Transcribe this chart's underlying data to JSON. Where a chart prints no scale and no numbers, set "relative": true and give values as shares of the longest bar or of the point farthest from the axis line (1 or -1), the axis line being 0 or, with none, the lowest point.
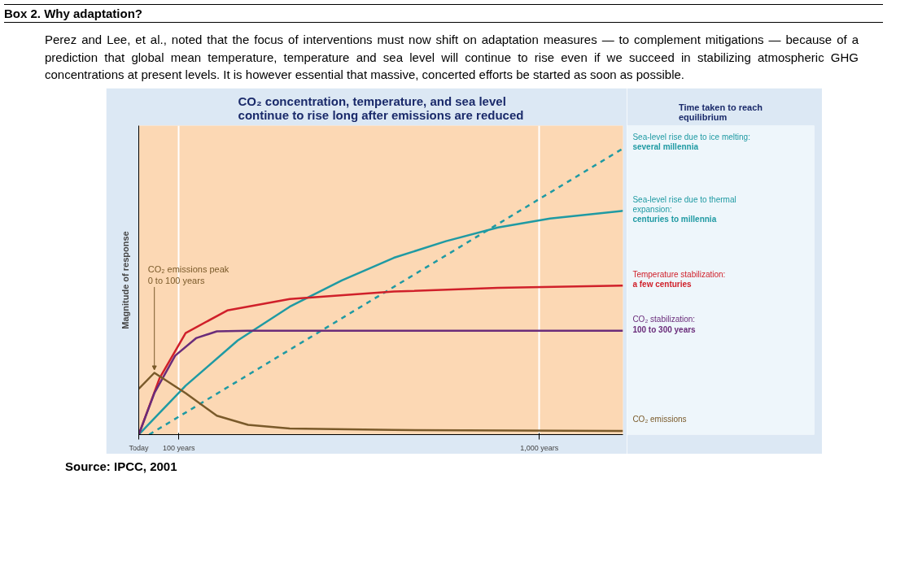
{
  "chart_data": {
    "type": "line",
    "title": "CO₂ concentration, temperature, and sea level\ncontinue to rise long after emissions are reduced",
    "ylabel": "Magnitude of response",
    "legend_title": "Time taken to reach\nequilibrium",
    "relative": true,
    "legend": "right",
    "grid": "x",
    "marker": "none",
    "xlim": [
      0,
      1209
    ],
    "xticks": [
      {
        "value": 0,
        "label": "Today"
      },
      {
        "value": 100,
        "label": "100 years"
      },
      {
        "value": 1000,
        "label": "1,000 years"
      }
    ],
    "series": [
      {
        "name": "Sea-level rise due to ice melting: several millennia",
        "color": "#1f9aa3",
        "line_style": "dashed",
        "x": [
          26,
          1209
        ],
        "values": [
          0,
          1.0
        ]
      },
      {
        "name": "Sea-level rise due to thermal expansion: centuries to millennia",
        "color": "#1f9aa3",
        "line_style": "solid",
        "x": [
          0,
          117,
          247,
          377,
          507,
          637,
          767,
          897,
          1027,
          1209
        ],
        "values": [
          0,
          0.171,
          0.329,
          0.447,
          0.539,
          0.618,
          0.676,
          0.724,
          0.755,
          0.782
        ]
      },
      {
        "name": "Temperature stabilization: a few centuries",
        "color": "#d0202a",
        "line_style": "solid",
        "x": [
          0,
          52,
          117,
          221,
          377,
          637,
          897,
          1209
        ],
        "values": [
          0,
          0.197,
          0.355,
          0.434,
          0.474,
          0.5,
          0.513,
          0.521
        ]
      },
      {
        "name": "CO₂ stabilization: 100 to 300 years",
        "color": "#6a2c7a",
        "line_style": "solid",
        "x": [
          0,
          39,
          91,
          143,
          195,
          273,
          1209
        ],
        "values": [
          0,
          0.145,
          0.276,
          0.337,
          0.361,
          0.363,
          0.363
        ]
      },
      {
        "name": "CO₂ emissions",
        "color": "#7a5a2a",
        "line_style": "solid",
        "x": [
          0,
          39,
          117,
          195,
          273,
          377,
          637,
          1209
        ],
        "values": [
          0.16,
          0.216,
          0.145,
          0.066,
          0.034,
          0.021,
          0.016,
          0.013
        ]
      }
    ],
    "annotations": [
      "Box 2. Why adaptation?",
      "Perez and Lee, et al., noted that the focus of interventions must now shift on adaptation measures — to complement mitigations — because of a prediction that global mean temperature, temperature and sea level will continue to rise even if we succeed in stabilizing atmospheric GHG concentrations at present levels. It is however essential that massive, concerted efforts be started as soon as possible.",
      {
        "text": "CO₂ emissions peak\n0 to 100 years",
        "x": 39,
        "y": 0.216
      },
      "Source: IPCC, 2001"
    ]
  }
}
